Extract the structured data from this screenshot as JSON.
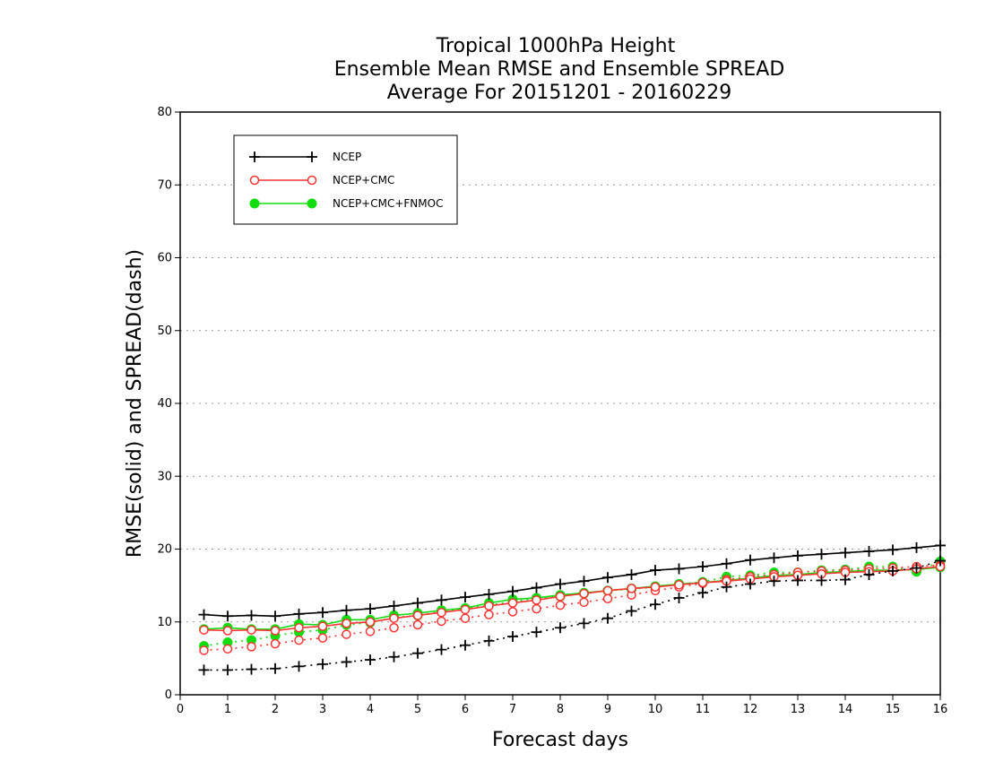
{
  "chart_data": {
    "type": "line",
    "title_lines": [
      "Tropical 1000hPa Height",
      "Ensemble Mean RMSE and Ensemble SPREAD",
      "Average For 20151201 - 20160229"
    ],
    "xlabel": "Forecast days",
    "ylabel": "RMSE(solid) and SPREAD(dash)",
    "xlim": [
      0,
      16
    ],
    "ylim": [
      0,
      80
    ],
    "xticks": [
      "0",
      "1",
      "2",
      "3",
      "4",
      "5",
      "6",
      "7",
      "8",
      "9",
      "10",
      "11",
      "12",
      "13",
      "14",
      "15",
      "16"
    ],
    "yticks": [
      "0",
      "10",
      "20",
      "30",
      "40",
      "50",
      "60",
      "70",
      "80"
    ],
    "grid": "horizontal-dotted",
    "legend_position": "top-left",
    "x": [
      0.5,
      1,
      1.5,
      2,
      2.5,
      3,
      3.5,
      4,
      4.5,
      5,
      5.5,
      6,
      6.5,
      7,
      7.5,
      8,
      8.5,
      9,
      9.5,
      10,
      10.5,
      11,
      11.5,
      12,
      12.5,
      13,
      13.5,
      14,
      14.5,
      15,
      15.5,
      16
    ],
    "series": [
      {
        "name": "NCEP",
        "color": "#000000",
        "marker": "plus",
        "rmse": [
          11.0,
          10.8,
          10.9,
          10.8,
          11.1,
          11.3,
          11.6,
          11.8,
          12.2,
          12.6,
          13.0,
          13.4,
          13.8,
          14.2,
          14.7,
          15.2,
          15.6,
          16.1,
          16.5,
          17.1,
          17.3,
          17.6,
          18.0,
          18.5,
          18.8,
          19.1,
          19.3,
          19.5,
          19.7,
          19.9,
          20.2,
          20.5
        ],
        "spread": [
          3.4,
          3.4,
          3.5,
          3.6,
          3.9,
          4.2,
          4.5,
          4.8,
          5.2,
          5.7,
          6.2,
          6.8,
          7.4,
          8.0,
          8.6,
          9.2,
          9.8,
          10.5,
          11.5,
          12.4,
          13.3,
          14.0,
          14.8,
          15.2,
          15.6,
          15.7,
          15.7,
          15.8,
          16.5,
          17.0,
          17.4,
          18.4
        ]
      },
      {
        "name": "NCEP+CMC",
        "color": "#ff3333",
        "marker": "open-circle",
        "rmse": [
          8.9,
          8.8,
          8.9,
          8.8,
          9.2,
          9.4,
          9.8,
          10.0,
          10.5,
          10.9,
          11.3,
          11.7,
          12.2,
          12.6,
          13.0,
          13.5,
          13.9,
          14.3,
          14.6,
          14.8,
          15.1,
          15.4,
          15.6,
          15.9,
          16.2,
          16.4,
          16.6,
          16.8,
          16.9,
          17.0,
          17.3,
          17.6
        ],
        "spread": [
          6.1,
          6.3,
          6.6,
          7.0,
          7.5,
          7.8,
          8.3,
          8.7,
          9.2,
          9.6,
          10.1,
          10.5,
          11.0,
          11.4,
          11.8,
          12.3,
          12.7,
          13.2,
          13.7,
          14.3,
          14.8,
          15.3,
          15.8,
          16.2,
          16.5,
          16.8,
          17.0,
          17.1,
          17.3,
          17.4,
          17.6,
          17.8
        ]
      },
      {
        "name": "NCEP+CMC+FNMOC",
        "color": "#11dd11",
        "marker": "filled-circle",
        "rmse": [
          9.0,
          9.2,
          9.0,
          9.0,
          9.7,
          9.6,
          10.3,
          10.3,
          10.9,
          11.2,
          11.6,
          11.9,
          12.6,
          13.1,
          13.3,
          13.7,
          14.0,
          14.3,
          14.6,
          14.9,
          15.2,
          15.4,
          15.7,
          16.0,
          16.4,
          16.5,
          16.8,
          16.9,
          17.1,
          17.1,
          17.2,
          17.5
        ],
        "spread": [
          6.7,
          7.2,
          7.5,
          8.1,
          8.6,
          8.9,
          9.6,
          9.9,
          10.6,
          10.9,
          11.4,
          11.8,
          12.3,
          12.8,
          13.2,
          13.5,
          13.9,
          14.3,
          14.5,
          14.8,
          15.2,
          15.5,
          16.2,
          16.4,
          16.8,
          16.8,
          17.1,
          17.2,
          17.6,
          17.6,
          16.9,
          18.3
        ]
      }
    ]
  }
}
